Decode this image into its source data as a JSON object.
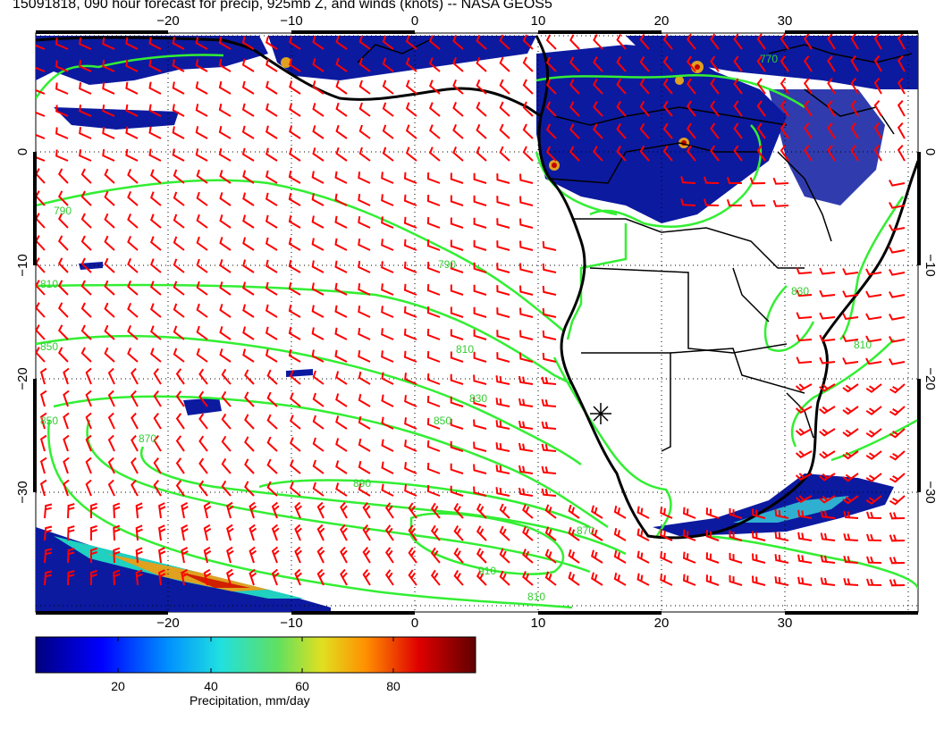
{
  "title": "15091818, 090 hour forecast for precip, 925mb Z, and winds (knots) -- NASA GEOS5",
  "map": {
    "lon_ticks": [
      "−20",
      "−10",
      "0",
      "10",
      "20",
      "30"
    ],
    "lat_ticks": [
      "0",
      "−10",
      "−20",
      "−30"
    ],
    "contour_labels": [
      "790",
      "810",
      "850",
      "870",
      "890",
      "910",
      "810",
      "850",
      "870",
      "790",
      "810",
      "830",
      "850",
      "770",
      "830",
      "810"
    ],
    "colors": {
      "wind_barbs": "#ff0000",
      "contours": "#33ee33",
      "coastline": "#000000",
      "precip_low": "#000090",
      "precip_high": "#800000"
    }
  },
  "colorbar": {
    "label": "Precipitation, mm/day",
    "ticks": [
      "20",
      "40",
      "60",
      "80"
    ],
    "range": [
      0,
      100
    ]
  }
}
